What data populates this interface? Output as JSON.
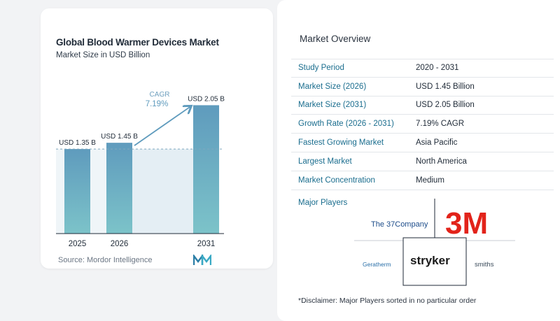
{
  "chart": {
    "title": "Global Blood Warmer Devices Market",
    "subtitle": "Market Size in USD Billion",
    "source": "Source:  Mordor Intelligence",
    "cagr_label": "CAGR",
    "cagr_value": "7.19%"
  },
  "chart_data": {
    "type": "bar",
    "title": "Global Blood Warmer Devices Market",
    "subtitle": "Market Size in USD Billion",
    "categories": [
      "2025",
      "2026",
      "2031"
    ],
    "values": [
      1.35,
      1.45,
      2.05
    ],
    "value_labels": [
      "USD 1.35 B",
      "USD 1.45 B",
      "USD 2.05 B"
    ],
    "ylim": [
      0,
      2.2
    ],
    "grid": false,
    "annotation": {
      "label": "CAGR",
      "value": "7.19%"
    }
  },
  "overview": {
    "title": "Market Overview",
    "rows": [
      {
        "label": "Study Period",
        "value": "2020 - 2031"
      },
      {
        "label": "Market Size (2026)",
        "value": "USD 1.45 Billion"
      },
      {
        "label": "Market Size (2031)",
        "value": "USD 2.05 Billion"
      },
      {
        "label": "Growth Rate (2026 - 2031)",
        "value": "7.19% CAGR"
      },
      {
        "label": "Fastest Growing Market",
        "value": "Asia Pacific"
      },
      {
        "label": "Largest Market",
        "value": "North America"
      },
      {
        "label": "Market Concentration",
        "value": "Medium"
      }
    ],
    "players_label": "Major Players",
    "players": [
      "The 37Company",
      "3M",
      "Geratherm",
      "stryker",
      "smiths"
    ],
    "disclaimer": "*Disclaimer: Major Players sorted in no particular order"
  },
  "colors": {
    "bar_top": "#5f9bbd",
    "bar_bottom": "#7cc3c9",
    "accent": "#1a6d8e",
    "arrow": "#5f9bbd",
    "logo_3m": "#e2231a"
  }
}
